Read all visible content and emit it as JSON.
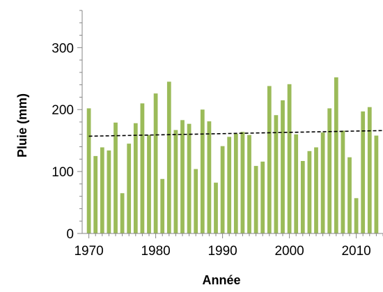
{
  "chart_data": {
    "type": "bar",
    "xlabel": "Année",
    "ylabel": "Pluie (mm)",
    "xlim": [
      1969,
      2014
    ],
    "ylim": [
      0,
      360
    ],
    "x_ticks": [
      1970,
      1980,
      1990,
      2000,
      2010
    ],
    "y_ticks": [
      0,
      100,
      200,
      300
    ],
    "grid": false,
    "bar_color": "#9bbb59",
    "trend_color": "#000000",
    "series": [
      {
        "x": [
          1970,
          1971,
          1972,
          1973,
          1974,
          1975,
          1976,
          1977,
          1978,
          1979,
          1980,
          1981,
          1982,
          1983,
          1984,
          1985,
          1986,
          1987,
          1988,
          1989,
          1990,
          1991,
          1992,
          1993,
          1994,
          1995,
          1996,
          1997,
          1998,
          1999,
          2000,
          2001,
          2002,
          2003,
          2004,
          2005,
          2006,
          2007,
          2008,
          2009,
          2010,
          2011,
          2012,
          2013,
          2014
        ],
        "values": [
          202,
          125,
          139,
          134,
          179,
          65,
          145,
          178,
          210,
          159,
          226,
          88,
          245,
          167,
          183,
          177,
          104,
          200,
          181,
          82,
          141,
          156,
          161,
          164,
          159,
          109,
          116,
          238,
          191,
          215,
          241,
          160,
          117,
          133,
          139,
          163,
          202,
          252,
          166,
          123,
          57,
          197,
          204,
          158,
          0
        ]
      }
    ],
    "trendline": {
      "type": "linear",
      "x": [
        1970,
        2014
      ],
      "y": [
        157,
        166
      ]
    }
  }
}
